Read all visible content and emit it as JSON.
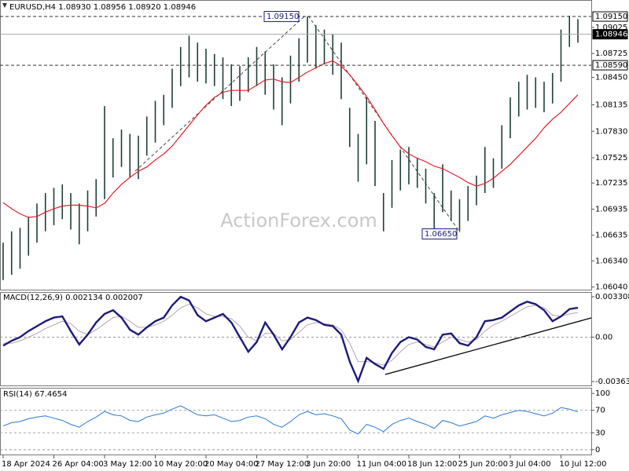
{
  "chart_data": [
    {
      "type": "ohlc",
      "title": "EURUSD,H4  1.08930 1.08956 1.08920 1.08946",
      "watermark": "ActionForex.com",
      "categories": [
        "18 Apr 2024",
        null,
        null,
        null,
        null,
        null,
        "26 Apr 04:00",
        null,
        null,
        null,
        null,
        null,
        "3 May 12:00",
        null,
        null,
        null,
        null,
        null,
        "10 May 20:00",
        null,
        null,
        null,
        null,
        null,
        "20 May 04:00",
        null,
        null,
        null,
        null,
        null,
        "27 May 12:00",
        null,
        null,
        null,
        null,
        null,
        "3 Jun 20:00",
        null,
        null,
        null,
        null,
        null,
        "11 Jun 04:00",
        null,
        null,
        null,
        null,
        null,
        "18 Jun 12:00",
        null,
        null,
        null,
        null,
        null,
        "25 Jun 20:00",
        null,
        null,
        null,
        null,
        null,
        "3 Jul 04:00",
        null,
        null,
        null,
        null,
        null,
        "10 Jul 12:00",
        null,
        null
      ],
      "high": [
        1.0655,
        1.0668,
        1.0672,
        1.0685,
        1.07,
        1.0712,
        1.0718,
        1.0722,
        1.0712,
        1.07,
        1.0715,
        1.0728,
        1.0812,
        1.0775,
        1.0785,
        1.078,
        1.0778,
        1.08,
        1.0818,
        1.0825,
        1.0855,
        1.088,
        1.0893,
        1.0885,
        1.0878,
        1.0872,
        1.0868,
        1.086,
        1.0858,
        1.0868,
        1.088,
        1.0875,
        1.086,
        1.0845,
        1.087,
        1.089,
        1.0915,
        1.0905,
        1.09,
        1.0895,
        1.0885,
        1.081,
        1.078,
        1.0822,
        1.0795,
        1.0712,
        1.075,
        1.0762,
        1.0765,
        1.0752,
        1.074,
        1.0712,
        1.0745,
        1.0715,
        1.0705,
        1.072,
        1.0732,
        1.0765,
        1.0752,
        1.079,
        1.0822,
        1.084,
        1.0848,
        1.0845,
        1.084,
        1.085,
        1.09,
        1.0916,
        1.0912
      ],
      "low": [
        1.0612,
        1.0618,
        1.0625,
        1.064,
        1.0655,
        1.0668,
        1.0675,
        1.0682,
        1.067,
        1.0653,
        1.0668,
        1.0685,
        1.0705,
        1.073,
        1.0742,
        1.073,
        1.0728,
        1.0755,
        1.077,
        1.079,
        1.081,
        1.0835,
        1.0845,
        1.084,
        1.0838,
        1.0835,
        1.082,
        1.0812,
        1.0818,
        1.0828,
        1.0835,
        1.0825,
        1.0808,
        1.079,
        1.0815,
        1.084,
        1.0862,
        1.0855,
        1.086,
        1.0848,
        1.082,
        1.0765,
        1.0725,
        1.0745,
        1.072,
        1.0668,
        1.0695,
        1.0715,
        1.0722,
        1.0718,
        1.07,
        1.0665,
        1.069,
        1.068,
        1.0668,
        1.068,
        1.0698,
        1.0712,
        1.0718,
        1.074,
        1.0775,
        1.08,
        1.0808,
        1.081,
        1.0805,
        1.0815,
        1.084,
        1.088,
        1.0885
      ],
      "color": "#1f3f35",
      "ma": {
        "color": "#e0202a",
        "values": [
          1.0701,
          1.0694,
          1.0688,
          1.0684,
          1.0685,
          1.069,
          1.0694,
          1.0697,
          1.0698,
          1.0698,
          1.0697,
          1.0695,
          1.07,
          1.0712,
          1.0722,
          1.073,
          1.0737,
          1.0742,
          1.075,
          1.0757,
          1.0766,
          1.0778,
          1.079,
          1.0802,
          1.0813,
          1.0822,
          1.0828,
          1.083,
          1.083,
          1.083,
          1.0836,
          1.0842,
          1.0843,
          1.084,
          1.0839,
          1.0845,
          1.0851,
          1.0856,
          1.0861,
          1.0864,
          1.0858,
          1.0848,
          1.0836,
          1.0823,
          1.0808,
          1.0792,
          1.0778,
          1.0765,
          1.0757,
          1.0752,
          1.0748,
          1.0743,
          1.074,
          1.0735,
          1.073,
          1.0724,
          1.072,
          1.0723,
          1.0729,
          1.0737,
          1.0745,
          1.0755,
          1.0765,
          1.0775,
          1.0787,
          1.0797,
          1.0805,
          1.0815,
          1.0825
        ]
      },
      "ylim": [
        1.06,
        1.0934
      ],
      "yticks": [
        1.09025,
        1.08725,
        {
          "value": 1.0845,
          "label": "1.08450"
        },
        1.08135,
        {
          "value": 1.0783,
          "label": "1.07830"
        },
        1.07525,
        1.07235,
        1.06935,
        1.06635,
        {
          "value": 1.0634,
          "label": "1.06340"
        },
        {
          "value": 1.0604,
          "label": "1.06040"
        }
      ],
      "levels": [
        {
          "value": 1.0915,
          "label": "1.09150",
          "style": "dashed"
        },
        {
          "value": 1.08946,
          "label": "1.08946",
          "style": "current"
        },
        {
          "value": 1.0859,
          "label": "1.08590",
          "style": "dashed"
        }
      ],
      "annotations": [
        {
          "value": 1.0915,
          "label": "1.09150"
        },
        {
          "value": 1.0665,
          "label": "1.06650"
        }
      ]
    },
    {
      "type": "line",
      "title": "MACD(12,26,9) 0.002134 0.002007",
      "series": [
        {
          "color": "#1b1b7a",
          "values": [
            -0.0007,
            -0.0003,
            0.0,
            0.0005,
            0.0009,
            0.0013,
            0.0016,
            0.0017,
            0.0005,
            -0.0006,
            0.0002,
            0.0012,
            0.0019,
            0.0022,
            0.0016,
            0.0006,
            0.0002,
            0.0008,
            0.0013,
            0.0016,
            0.0026,
            0.0033,
            0.003,
            0.0018,
            0.0013,
            0.0016,
            0.0019,
            0.0012,
            0.0,
            -0.0012,
            -0.0004,
            0.0012,
            0.0002,
            -0.001,
            0.0,
            0.0012,
            0.0016,
            0.0014,
            0.001,
            0.0009,
            0.0002,
            -0.002,
            -0.0036,
            -0.0017,
            -0.0022,
            -0.0026,
            -0.0013,
            -0.0004,
            0.0,
            -0.0002,
            -0.0008,
            -0.001,
            0.0002,
            0.0003,
            -0.0005,
            -0.0007,
            0.0,
            0.0013,
            0.0014,
            0.0016,
            0.0021,
            0.0026,
            0.0029,
            0.0027,
            0.0022,
            0.0013,
            0.0017,
            0.0023,
            0.0024
          ]
        },
        {
          "color": "#b8a4a4",
          "values": [
            -0.0005,
            -0.0005,
            -0.0003,
            0.0,
            0.0003,
            0.0007,
            0.001,
            0.0013,
            0.0011,
            0.0005,
            0.0002,
            0.0006,
            0.0011,
            0.0016,
            0.0017,
            0.0013,
            0.0008,
            0.0008,
            0.001,
            0.0013,
            0.0018,
            0.0024,
            0.0027,
            0.0024,
            0.0019,
            0.0017,
            0.0017,
            0.0015,
            0.0009,
            0.0,
            -0.0003,
            0.0003,
            0.0003,
            -0.0003,
            -0.0002,
            0.0004,
            0.001,
            0.0012,
            0.0011,
            0.001,
            0.0006,
            -0.0005,
            -0.002,
            -0.002,
            -0.0021,
            -0.0023,
            -0.0019,
            -0.0012,
            -0.0006,
            -0.0004,
            -0.0006,
            -0.0008,
            -0.0004,
            0.0,
            -0.0002,
            -0.0004,
            -0.0002,
            0.0005,
            0.001,
            0.0013,
            0.0017,
            0.0021,
            0.0025,
            0.0026,
            0.0024,
            0.0018,
            0.0017,
            0.0019,
            0.002
          ]
        }
      ],
      "ylim": [
        -0.004021,
        0.003694
      ],
      "yticks": [
        0.003308,
        {
          "value": 0,
          "label": "0.00"
        },
        -0.003635
      ]
    },
    {
      "type": "line",
      "title": "RSI(14) 67.4654",
      "series": [
        {
          "color": "#2a78d8",
          "values": [
            42,
            48,
            50,
            55,
            58,
            60,
            56,
            52,
            45,
            40,
            50,
            58,
            68,
            62,
            60,
            52,
            50,
            58,
            62,
            65,
            72,
            78,
            70,
            62,
            60,
            62,
            56,
            50,
            52,
            58,
            60,
            55,
            45,
            40,
            50,
            62,
            68,
            62,
            64,
            60,
            55,
            35,
            28,
            45,
            40,
            32,
            45,
            52,
            56,
            50,
            45,
            38,
            52,
            48,
            42,
            46,
            50,
            60,
            56,
            62,
            66,
            70,
            68,
            64,
            60,
            65,
            75,
            72,
            67
          ]
        }
      ],
      "ylim": [
        -10,
        110
      ],
      "yticks": [
        100,
        70,
        30,
        0
      ],
      "levels": [
        70,
        30
      ]
    }
  ]
}
